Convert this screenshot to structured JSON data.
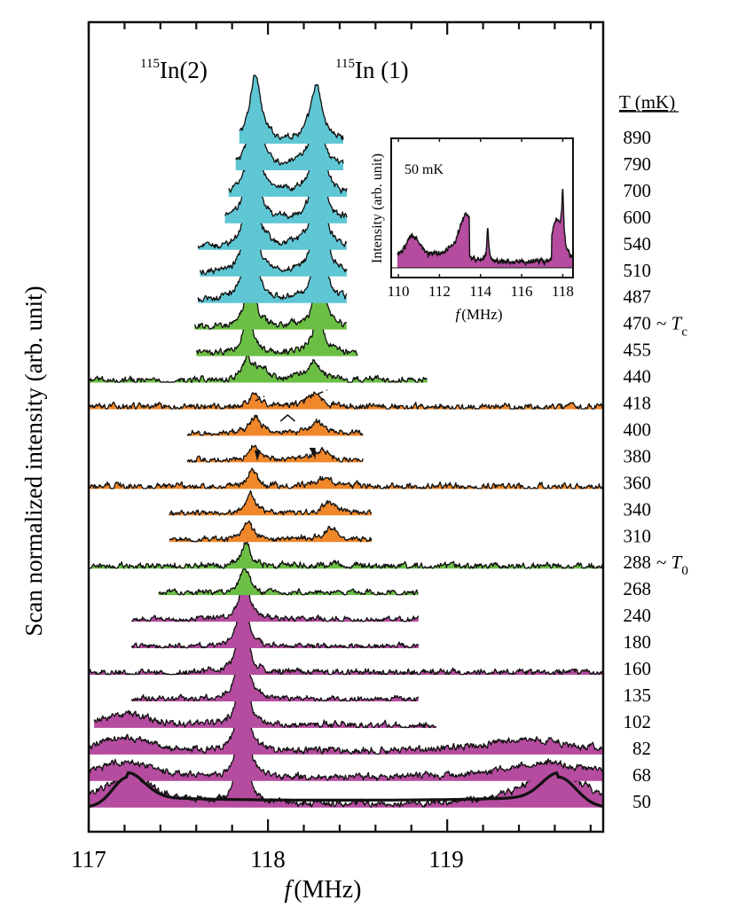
{
  "chart_data": {
    "type": "area",
    "title": "",
    "xlabel": "f (MHz)",
    "xlabel_italic_part": "f",
    "xlabel_rest": "(MHz)",
    "ylabel": "Scan normalized intensity (arb. unit)",
    "xlim": [
      117.0,
      119.87
    ],
    "xticks": [
      117,
      118,
      119
    ],
    "xtick_labels": [
      "117",
      "118",
      "119"
    ],
    "minor_tick_step": 0.2,
    "grid": false,
    "legend_title": "T (mK)",
    "peak_labels": [
      {
        "mass": "115",
        "text": "In(2)",
        "freq": 117.93
      },
      {
        "mass": "115",
        "text": "In (1)",
        "freq": 118.27
      }
    ],
    "colors": {
      "cyan": "#5fc6d4",
      "green": "#6cbf45",
      "orange": "#f0872a",
      "magenta": "#b54c9f"
    },
    "series": [
      {
        "T": "890",
        "suffix": "",
        "color": "cyan",
        "x_range": [
          117.84,
          118.42
        ],
        "peaks": [
          [
            117.93,
            0.035,
            95
          ],
          [
            118.27,
            0.04,
            75
          ]
        ],
        "noise": 3
      },
      {
        "T": "790",
        "suffix": "",
        "color": "cyan",
        "x_range": [
          117.82,
          118.42
        ],
        "peaks": [
          [
            117.93,
            0.035,
            100
          ],
          [
            118.27,
            0.04,
            80
          ]
        ],
        "noise": 3
      },
      {
        "T": "700",
        "suffix": "",
        "color": "cyan",
        "x_range": [
          117.78,
          118.44
        ],
        "peaks": [
          [
            117.92,
            0.035,
            105
          ],
          [
            118.28,
            0.04,
            88
          ]
        ],
        "noise": 3
      },
      {
        "T": "600",
        "suffix": "",
        "color": "cyan",
        "x_range": [
          117.76,
          118.44
        ],
        "peaks": [
          [
            117.91,
            0.035,
            110
          ],
          [
            118.28,
            0.04,
            92
          ]
        ],
        "noise": 3
      },
      {
        "T": "540",
        "suffix": "",
        "color": "cyan",
        "x_range": [
          117.61,
          118.44
        ],
        "peaks": [
          [
            117.91,
            0.035,
            112
          ],
          [
            118.28,
            0.04,
            95
          ]
        ],
        "noise": 3
      },
      {
        "T": "510",
        "suffix": "",
        "color": "cyan",
        "x_range": [
          117.62,
          118.44
        ],
        "peaks": [
          [
            117.9,
            0.035,
            110
          ],
          [
            118.29,
            0.04,
            98
          ]
        ],
        "noise": 3
      },
      {
        "T": "487",
        "suffix": "",
        "color": "cyan",
        "x_range": [
          117.61,
          118.44
        ],
        "peaks": [
          [
            117.9,
            0.035,
            108
          ],
          [
            118.29,
            0.035,
            96
          ]
        ],
        "noise": 3
      },
      {
        "T": "470",
        "suffix": "~ Tc",
        "color": "green",
        "x_range": [
          117.59,
          118.44
        ],
        "peaks": [
          [
            117.9,
            0.03,
            80
          ],
          [
            118.29,
            0.035,
            75
          ]
        ],
        "noise": 3
      },
      {
        "T": "455",
        "suffix": "",
        "color": "green",
        "x_range": [
          117.6,
          118.5
        ],
        "peaks": [
          [
            117.89,
            0.03,
            62
          ],
          [
            118.28,
            0.04,
            50
          ]
        ],
        "noise": 3
      },
      {
        "T": "440",
        "suffix": "",
        "color": "green",
        "x_range": [
          117.0,
          118.89
        ],
        "peaks": [
          [
            117.89,
            0.04,
            30
          ],
          [
            117.97,
            0.03,
            14
          ],
          [
            118.25,
            0.05,
            24
          ]
        ],
        "noise": 3
      },
      {
        "T": "418",
        "suffix": "",
        "color": "orange",
        "x_range": [
          117.0,
          119.87
        ],
        "peaks": [
          [
            117.93,
            0.04,
            18
          ],
          [
            118.26,
            0.04,
            20
          ]
        ],
        "noise": 3
      },
      {
        "T": "400",
        "suffix": "",
        "color": "orange",
        "x_range": [
          117.55,
          118.53
        ],
        "peaks": [
          [
            117.93,
            0.04,
            22
          ],
          [
            118.27,
            0.045,
            16
          ]
        ],
        "noise": 2.5
      },
      {
        "T": "380",
        "suffix": "",
        "color": "orange",
        "x_range": [
          117.55,
          118.53
        ],
        "peaks": [
          [
            117.92,
            0.03,
            22
          ],
          [
            118.3,
            0.05,
            14
          ]
        ],
        "noise": 2.5
      },
      {
        "T": "360",
        "suffix": "",
        "color": "orange",
        "x_range": [
          117.0,
          119.87
        ],
        "peaks": [
          [
            117.91,
            0.03,
            24
          ],
          [
            118.31,
            0.05,
            12
          ]
        ],
        "noise": 3
      },
      {
        "T": "340",
        "suffix": "",
        "color": "orange",
        "x_range": [
          117.45,
          118.58
        ],
        "peaks": [
          [
            117.9,
            0.03,
            28
          ],
          [
            118.34,
            0.05,
            15
          ]
        ],
        "noise": 2.5
      },
      {
        "T": "310",
        "suffix": "",
        "color": "orange",
        "x_range": [
          117.45,
          118.58
        ],
        "peaks": [
          [
            117.89,
            0.03,
            26
          ],
          [
            118.35,
            0.05,
            15
          ]
        ],
        "noise": 2.5
      },
      {
        "T": "288",
        "suffix": "~ T0",
        "color": "green",
        "x_range": [
          117.0,
          119.87
        ],
        "peaks": [
          [
            117.88,
            0.03,
            32
          ],
          [
            118.37,
            0.03,
            6
          ]
        ],
        "noise": 3
      },
      {
        "T": "268",
        "suffix": "",
        "color": "green",
        "x_range": [
          117.39,
          118.84
        ],
        "peaks": [
          [
            117.87,
            0.03,
            36
          ]
        ],
        "noise": 2.5
      },
      {
        "T": "240",
        "suffix": "",
        "color": "magenta",
        "x_range": [
          117.24,
          118.84
        ],
        "peaks": [
          [
            117.87,
            0.03,
            60
          ]
        ],
        "noise": 2.5
      },
      {
        "T": "180",
        "suffix": "",
        "color": "magenta",
        "x_range": [
          117.24,
          118.84
        ],
        "peaks": [
          [
            117.86,
            0.03,
            78
          ]
        ],
        "noise": 2.5
      },
      {
        "T": "160",
        "suffix": "",
        "color": "magenta",
        "x_range": [
          117.0,
          119.87
        ],
        "peaks": [
          [
            117.86,
            0.028,
            100
          ]
        ],
        "noise": 3
      },
      {
        "T": "135",
        "suffix": "",
        "color": "magenta",
        "x_range": [
          117.24,
          118.84
        ],
        "peaks": [
          [
            117.86,
            0.028,
            112
          ]
        ],
        "noise": 2.5
      },
      {
        "T": "102",
        "suffix": "",
        "color": "magenta",
        "x_range": [
          117.03,
          118.94
        ],
        "peaks": [
          [
            117.86,
            0.025,
            132
          ],
          [
            117.22,
            0.15,
            16
          ]
        ],
        "noise": 3
      },
      {
        "T": "82",
        "suffix": "",
        "color": "magenta",
        "x_range": [
          117.0,
          119.87
        ],
        "peaks": [
          [
            117.86,
            0.025,
            150
          ],
          [
            117.2,
            0.17,
            20
          ],
          [
            119.45,
            0.35,
            16
          ]
        ],
        "noise": 3
      },
      {
        "T": "68",
        "suffix": "",
        "color": "magenta",
        "x_range": [
          117.0,
          119.87
        ],
        "peaks": [
          [
            117.86,
            0.025,
            165
          ],
          [
            117.2,
            0.17,
            24
          ],
          [
            119.55,
            0.3,
            22
          ]
        ],
        "noise": 3
      },
      {
        "T": "50",
        "suffix": "",
        "color": "magenta",
        "x_range": [
          117.0,
          119.87
        ],
        "peaks": [
          [
            117.86,
            0.022,
            180
          ],
          [
            117.22,
            0.17,
            42
          ],
          [
            119.6,
            0.2,
            48
          ]
        ],
        "noise": 3
      }
    ],
    "powder_fit": {
      "description": "Simulated powder pattern overlay on 50 mK spectrum",
      "left_horn": 117.22,
      "right_horn": 119.62,
      "horn_height": 42,
      "floor": 10
    },
    "inset": {
      "label": "50 mK",
      "ylabel": "Intensity (arb. unit)",
      "xlabel_italic_part": "f",
      "xlabel_rest": "(MHz)",
      "xlim": [
        109.65,
        118.5
      ],
      "xticks": [
        110,
        112,
        114,
        116,
        118
      ],
      "xtick_labels": [
        "110",
        "112",
        "114",
        "116",
        "118"
      ],
      "color": "magenta",
      "peaks": [
        [
          110.7,
          0.45,
          26
        ],
        [
          113.3,
          0.5,
          50
        ],
        [
          114.35,
          0.05,
          38
        ],
        [
          117.7,
          0.3,
          45
        ],
        [
          118.0,
          0.05,
          60
        ]
      ],
      "edges_sharp": [
        113.45,
        117.45
      ],
      "noise": 2
    }
  }
}
